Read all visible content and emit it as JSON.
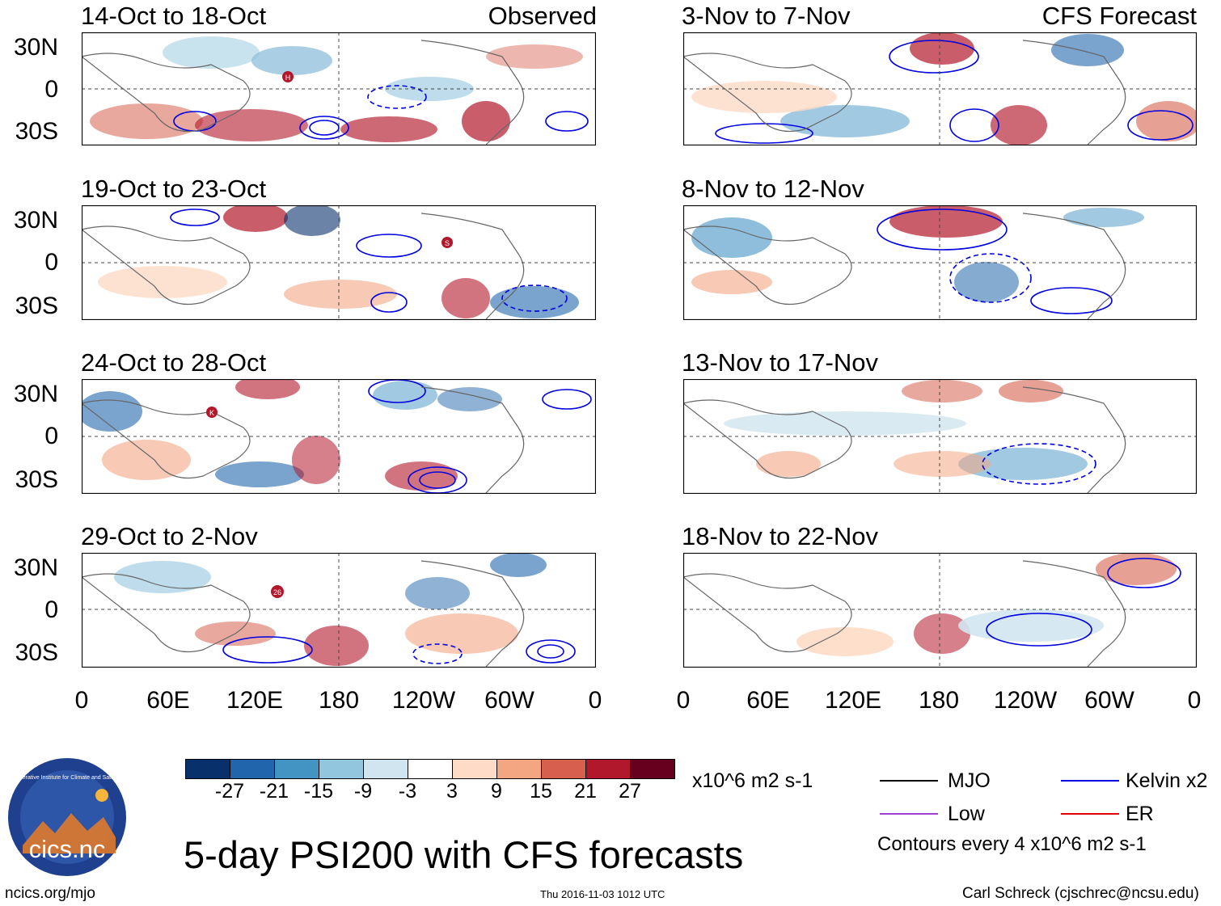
{
  "panels_observed": [
    {
      "dates": "14-Oct to 18-Oct",
      "tag": "Observed",
      "storms": [
        "H"
      ]
    },
    {
      "dates": "19-Oct to 23-Oct",
      "tag": "",
      "storms": [
        "S"
      ]
    },
    {
      "dates": "24-Oct to 28-Oct",
      "tag": "",
      "storms": [
        "K"
      ]
    },
    {
      "dates": "29-Oct to 2-Nov",
      "tag": "",
      "storms": [
        "26"
      ]
    }
  ],
  "panels_forecast": [
    {
      "dates": "3-Nov to 7-Nov",
      "tag": "CFS Forecast"
    },
    {
      "dates": "8-Nov to 12-Nov",
      "tag": ""
    },
    {
      "dates": "13-Nov to 17-Nov",
      "tag": ""
    },
    {
      "dates": "18-Nov to 22-Nov",
      "tag": ""
    }
  ],
  "lat_labels": [
    "30N",
    "0",
    "30S"
  ],
  "lon_labels": [
    "0",
    "60E",
    "120E",
    "180",
    "120W",
    "60W",
    "0"
  ],
  "colorbar": {
    "labels": [
      "-27",
      "-21",
      "-15",
      "-9",
      "-3",
      "3",
      "9",
      "15",
      "21",
      "27"
    ],
    "colors": [
      "#08306b",
      "#2166ac",
      "#4393c3",
      "#92c5de",
      "#d1e5f0",
      "#ffffff",
      "#fddbc7",
      "#f4a582",
      "#d6604d",
      "#b2182b",
      "#67001f"
    ],
    "units": "x10^6 m2 s-1"
  },
  "legend": {
    "items": [
      {
        "label": "MJO",
        "color": "#000000"
      },
      {
        "label": "Kelvin x2",
        "color": "#0000e0"
      },
      {
        "label": "Low",
        "color": "#a040d0"
      },
      {
        "label": "ER",
        "color": "#e00000"
      }
    ],
    "contour_note": "Contours every 4 x10^6 m2 s-1"
  },
  "logo": {
    "text": "cics.nc",
    "ring_text": "Cooperative Institute for Climate and Satellites"
  },
  "main_title": "5-day PSI200 with CFS forecasts",
  "footer": {
    "left": "ncics.org/mjo",
    "center": "Thu 2016-11-03 1012 UTC",
    "right": "Carl Schreck (cjschrec@ncsu.edu)"
  },
  "colors": {
    "warm": "#d6604d",
    "cool": "#4393c3",
    "kelvin": "#0000e0",
    "land": "#666666"
  }
}
